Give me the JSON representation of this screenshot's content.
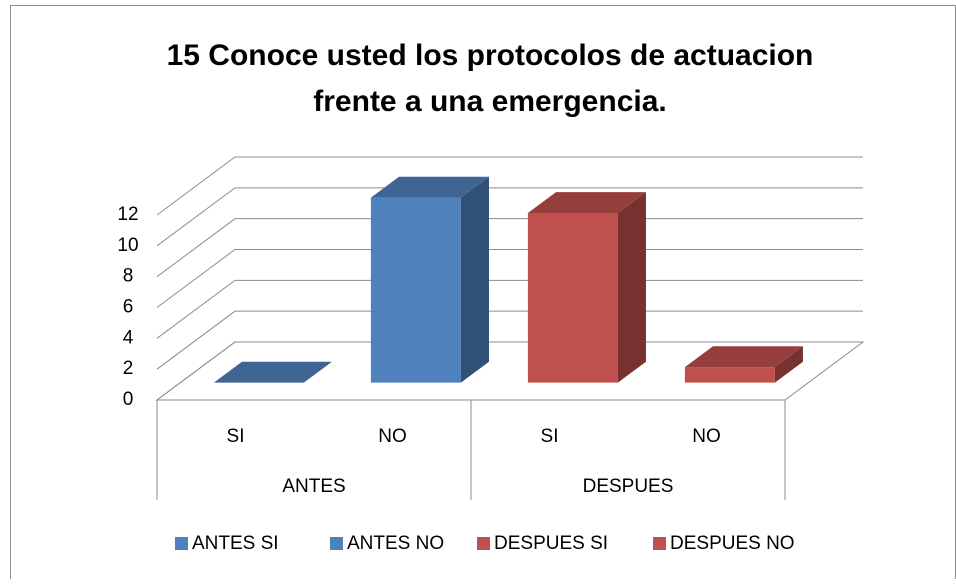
{
  "chart_data": {
    "type": "bar3d",
    "title": "15 Conoce usted los protocolos de actuacion frente a una emergencia.",
    "title_lines": [
      "15 Conoce usted los protocolos de actuacion",
      "frente a una emergencia."
    ],
    "categories": [
      "SI",
      "NO",
      "SI",
      "NO"
    ],
    "groups": [
      "ANTES",
      "DESPUES"
    ],
    "series": [
      {
        "name": "ANTES SI",
        "color": "#4f81bd",
        "values": [
          0,
          null,
          null,
          null
        ]
      },
      {
        "name": "ANTES NO",
        "color": "#4f81bd",
        "values": [
          null,
          12,
          null,
          null
        ]
      },
      {
        "name": "DESPUES SI",
        "color": "#c0504d",
        "values": [
          null,
          null,
          11,
          null
        ]
      },
      {
        "name": "DESPUES NO",
        "color": "#c0504d",
        "values": [
          null,
          null,
          null,
          1
        ]
      }
    ],
    "ylim": [
      0,
      12
    ],
    "yticks": [
      0,
      2,
      4,
      6,
      8,
      10,
      12
    ],
    "grid": true,
    "legend": "bottom"
  }
}
